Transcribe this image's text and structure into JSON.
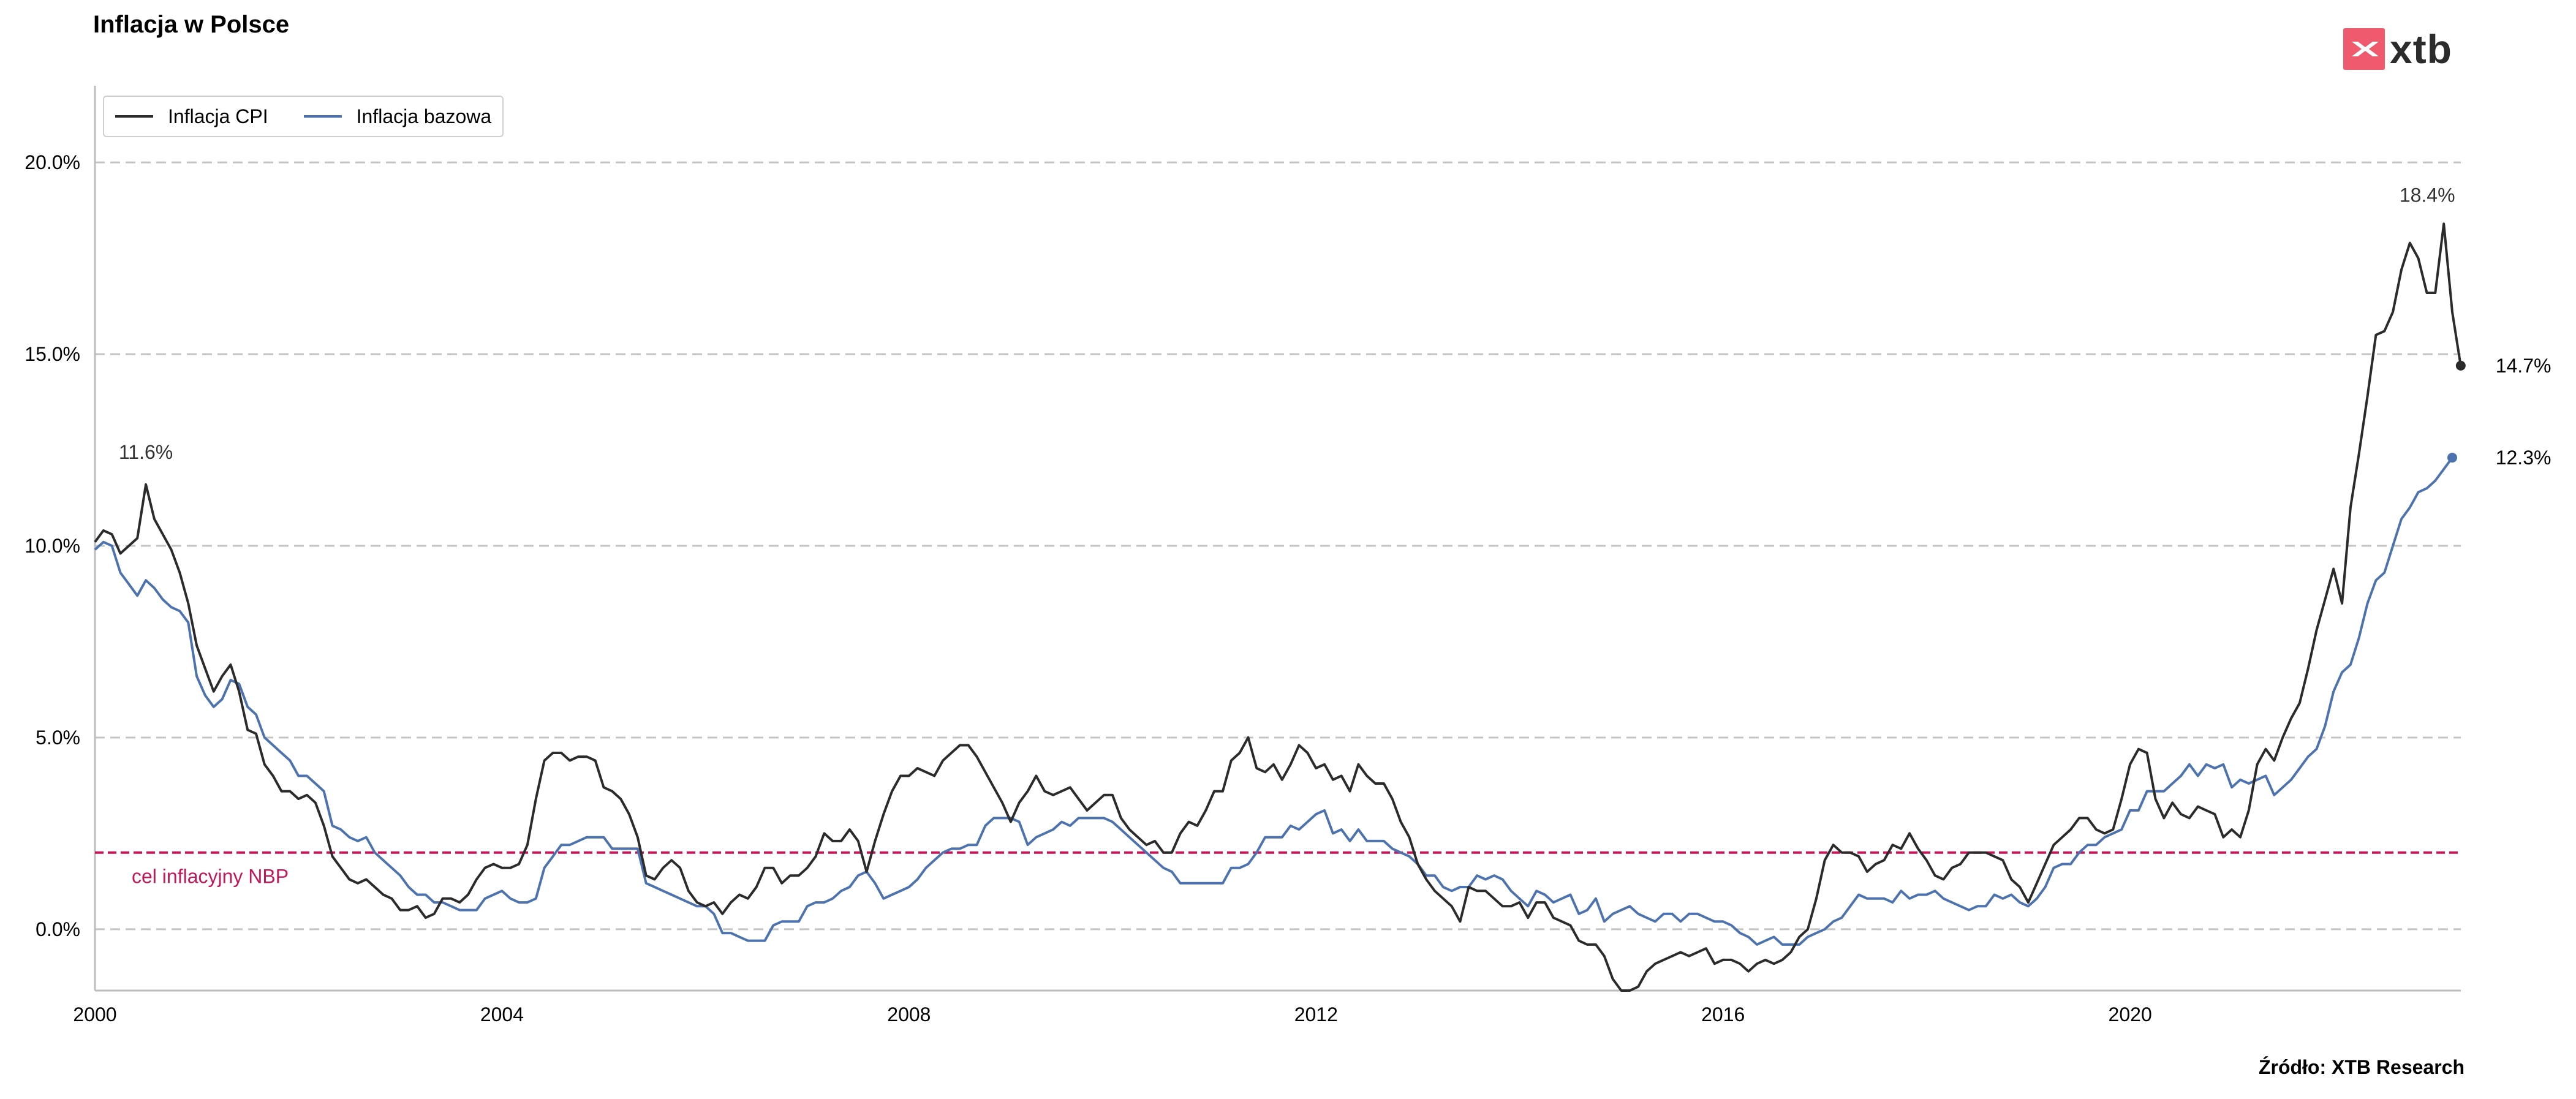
{
  "title": "Inflacja w Polsce",
  "source": "Źródło: XTB Research",
  "logo": {
    "text": "xtb",
    "color": "#f05a6e"
  },
  "chart_data": {
    "type": "line",
    "title": "Inflacja w Polsce",
    "xlabel": "",
    "ylabel": "",
    "xlim": [
      2000.0,
      2023.25
    ],
    "ylim": [
      -1.6,
      22.0
    ],
    "x_ticks": [
      2000,
      2004,
      2008,
      2012,
      2016,
      2020
    ],
    "y_ticks": [
      0,
      5,
      10,
      15,
      20
    ],
    "y_tick_labels": [
      "0.0%",
      "5.0%",
      "10.0%",
      "15.0%",
      "20.0%"
    ],
    "grid": "horizontal dashed",
    "legend_position": "top-left",
    "x_start": 2000.0,
    "x_step": 0.08333,
    "series": [
      {
        "name": "Inflacja CPI",
        "color": "#2b2b2b",
        "values": [
          10.1,
          10.4,
          10.3,
          9.8,
          10.0,
          10.2,
          11.6,
          10.7,
          10.3,
          9.9,
          9.3,
          8.5,
          7.4,
          6.8,
          6.2,
          6.6,
          6.9,
          6.2,
          5.2,
          5.1,
          4.3,
          4.0,
          3.6,
          3.6,
          3.4,
          3.5,
          3.3,
          2.7,
          1.9,
          1.6,
          1.3,
          1.2,
          1.3,
          1.1,
          0.9,
          0.8,
          0.5,
          0.5,
          0.6,
          0.3,
          0.4,
          0.8,
          0.8,
          0.7,
          0.9,
          1.3,
          1.6,
          1.7,
          1.6,
          1.6,
          1.7,
          2.2,
          3.4,
          4.4,
          4.6,
          4.6,
          4.4,
          4.5,
          4.5,
          4.4,
          3.7,
          3.6,
          3.4,
          3.0,
          2.4,
          1.4,
          1.3,
          1.6,
          1.8,
          1.6,
          1.0,
          0.7,
          0.6,
          0.7,
          0.4,
          0.7,
          0.9,
          0.8,
          1.1,
          1.6,
          1.6,
          1.2,
          1.4,
          1.4,
          1.6,
          1.9,
          2.5,
          2.3,
          2.3,
          2.6,
          2.3,
          1.5,
          2.3,
          3.0,
          3.6,
          4.0,
          4.0,
          4.2,
          4.1,
          4.0,
          4.4,
          4.6,
          4.8,
          4.8,
          4.5,
          4.1,
          3.7,
          3.3,
          2.8,
          3.3,
          3.6,
          4.0,
          3.6,
          3.5,
          3.6,
          3.7,
          3.4,
          3.1,
          3.3,
          3.5,
          3.5,
          2.9,
          2.6,
          2.4,
          2.2,
          2.3,
          2.0,
          2.0,
          2.5,
          2.8,
          2.7,
          3.1,
          3.6,
          3.6,
          4.4,
          4.6,
          5.0,
          4.2,
          4.1,
          4.3,
          3.9,
          4.3,
          4.8,
          4.6,
          4.2,
          4.3,
          3.9,
          4.0,
          3.6,
          4.3,
          4.0,
          3.8,
          3.8,
          3.4,
          2.8,
          2.4,
          1.7,
          1.3,
          1.0,
          0.8,
          0.6,
          0.2,
          1.1,
          1.0,
          1.0,
          0.8,
          0.6,
          0.6,
          0.7,
          0.3,
          0.7,
          0.7,
          0.3,
          0.2,
          0.1,
          -0.3,
          -0.4,
          -0.4,
          -0.7,
          -1.3,
          -1.6,
          -1.6,
          -1.5,
          -1.1,
          -0.9,
          -0.8,
          -0.7,
          -0.6,
          -0.7,
          -0.6,
          -0.5,
          -0.9,
          -0.8,
          -0.8,
          -0.9,
          -1.1,
          -0.9,
          -0.8,
          -0.9,
          -0.8,
          -0.6,
          -0.2,
          0.0,
          0.8,
          1.8,
          2.2,
          2.0,
          2.0,
          1.9,
          1.5,
          1.7,
          1.8,
          2.2,
          2.1,
          2.5,
          2.1,
          1.8,
          1.4,
          1.3,
          1.6,
          1.7,
          2.0,
          2.0,
          2.0,
          1.9,
          1.8,
          1.3,
          1.1,
          0.7,
          1.2,
          1.7,
          2.2,
          2.4,
          2.6,
          2.9,
          2.9,
          2.6,
          2.5,
          2.6,
          3.4,
          4.3,
          4.7,
          4.6,
          3.4,
          2.9,
          3.3,
          3.0,
          2.9,
          3.2,
          3.1,
          3.0,
          2.4,
          2.6,
          2.4,
          3.1,
          4.3,
          4.7,
          4.4,
          5.0,
          5.5,
          5.9,
          6.8,
          7.8,
          8.6,
          9.4,
          8.5,
          11.0,
          12.4,
          13.9,
          15.5,
          15.6,
          16.1,
          17.2,
          17.9,
          17.5,
          16.6,
          16.6,
          18.4,
          16.1,
          14.7
        ]
      },
      {
        "name": "Inflacja bazowa",
        "color": "#4c72b0",
        "values": [
          9.9,
          10.1,
          10.0,
          9.3,
          9.0,
          8.7,
          9.1,
          8.9,
          8.6,
          8.4,
          8.3,
          8.0,
          6.6,
          6.1,
          5.8,
          6.0,
          6.5,
          6.4,
          5.8,
          5.6,
          5.0,
          4.8,
          4.6,
          4.4,
          4.0,
          4.0,
          3.8,
          3.6,
          2.7,
          2.6,
          2.4,
          2.3,
          2.4,
          2.0,
          1.8,
          1.6,
          1.4,
          1.1,
          0.9,
          0.9,
          0.7,
          0.7,
          0.6,
          0.5,
          0.5,
          0.5,
          0.8,
          0.9,
          1.0,
          0.8,
          0.7,
          0.7,
          0.8,
          1.6,
          1.9,
          2.2,
          2.2,
          2.3,
          2.4,
          2.4,
          2.4,
          2.1,
          2.1,
          2.1,
          2.1,
          1.2,
          1.1,
          1.0,
          0.9,
          0.8,
          0.7,
          0.6,
          0.6,
          0.4,
          -0.1,
          -0.1,
          -0.2,
          -0.3,
          -0.3,
          -0.3,
          0.1,
          0.2,
          0.2,
          0.2,
          0.6,
          0.7,
          0.7,
          0.8,
          1.0,
          1.1,
          1.4,
          1.5,
          1.2,
          0.8,
          0.9,
          1.0,
          1.1,
          1.3,
          1.6,
          1.8,
          2.0,
          2.1,
          2.1,
          2.2,
          2.2,
          2.7,
          2.9,
          2.9,
          2.9,
          2.8,
          2.2,
          2.4,
          2.5,
          2.6,
          2.8,
          2.7,
          2.9,
          2.9,
          2.9,
          2.9,
          2.8,
          2.6,
          2.4,
          2.2,
          2.0,
          1.8,
          1.6,
          1.5,
          1.2,
          1.2,
          1.2,
          1.2,
          1.2,
          1.2,
          1.6,
          1.6,
          1.7,
          2.0,
          2.4,
          2.4,
          2.4,
          2.7,
          2.6,
          2.8,
          3.0,
          3.1,
          2.5,
          2.6,
          2.3,
          2.6,
          2.3,
          2.3,
          2.3,
          2.1,
          2.0,
          1.9,
          1.7,
          1.4,
          1.4,
          1.1,
          1.0,
          1.1,
          1.1,
          1.4,
          1.3,
          1.4,
          1.3,
          1.0,
          0.8,
          0.6,
          1.0,
          0.9,
          0.7,
          0.8,
          0.9,
          0.4,
          0.5,
          0.8,
          0.2,
          0.4,
          0.5,
          0.6,
          0.4,
          0.3,
          0.2,
          0.4,
          0.4,
          0.2,
          0.4,
          0.4,
          0.3,
          0.2,
          0.2,
          0.1,
          -0.1,
          -0.2,
          -0.4,
          -0.3,
          -0.2,
          -0.4,
          -0.4,
          -0.4,
          -0.2,
          -0.1,
          0.0,
          0.2,
          0.3,
          0.6,
          0.9,
          0.8,
          0.8,
          0.8,
          0.7,
          1.0,
          0.8,
          0.9,
          0.9,
          1.0,
          0.8,
          0.7,
          0.6,
          0.5,
          0.6,
          0.6,
          0.9,
          0.8,
          0.9,
          0.7,
          0.6,
          0.8,
          1.1,
          1.6,
          1.7,
          1.7,
          2.0,
          2.2,
          2.2,
          2.4,
          2.5,
          2.6,
          3.1,
          3.1,
          3.6,
          3.6,
          3.6,
          3.8,
          4.0,
          4.3,
          4.0,
          4.3,
          4.2,
          4.3,
          3.7,
          3.9,
          3.8,
          3.9,
          4.0,
          3.5,
          3.7,
          3.9,
          4.2,
          4.5,
          4.7,
          5.3,
          6.2,
          6.7,
          6.9,
          7.6,
          8.5,
          9.1,
          9.3,
          10.0,
          10.7,
          11.0,
          11.4,
          11.5,
          11.7,
          12.0,
          12.3
        ]
      }
    ],
    "annotations": [
      {
        "text": "11.6%",
        "x": 2000.5,
        "y": 11.6,
        "series": "Inflacja CPI"
      },
      {
        "text": "18.4%",
        "x": 2022.92,
        "y": 18.4,
        "series": "Inflacja CPI"
      },
      {
        "text": "14.7%",
        "x": 2023.17,
        "y": 14.7,
        "series": "Inflacja CPI"
      },
      {
        "text": "12.3%",
        "x": 2023.17,
        "y": 12.3,
        "series": "Inflacja bazowa"
      }
    ],
    "reference_line": {
      "label": "cel inflacyjny NBP",
      "y": 2.0,
      "color": "#c2185b"
    }
  }
}
